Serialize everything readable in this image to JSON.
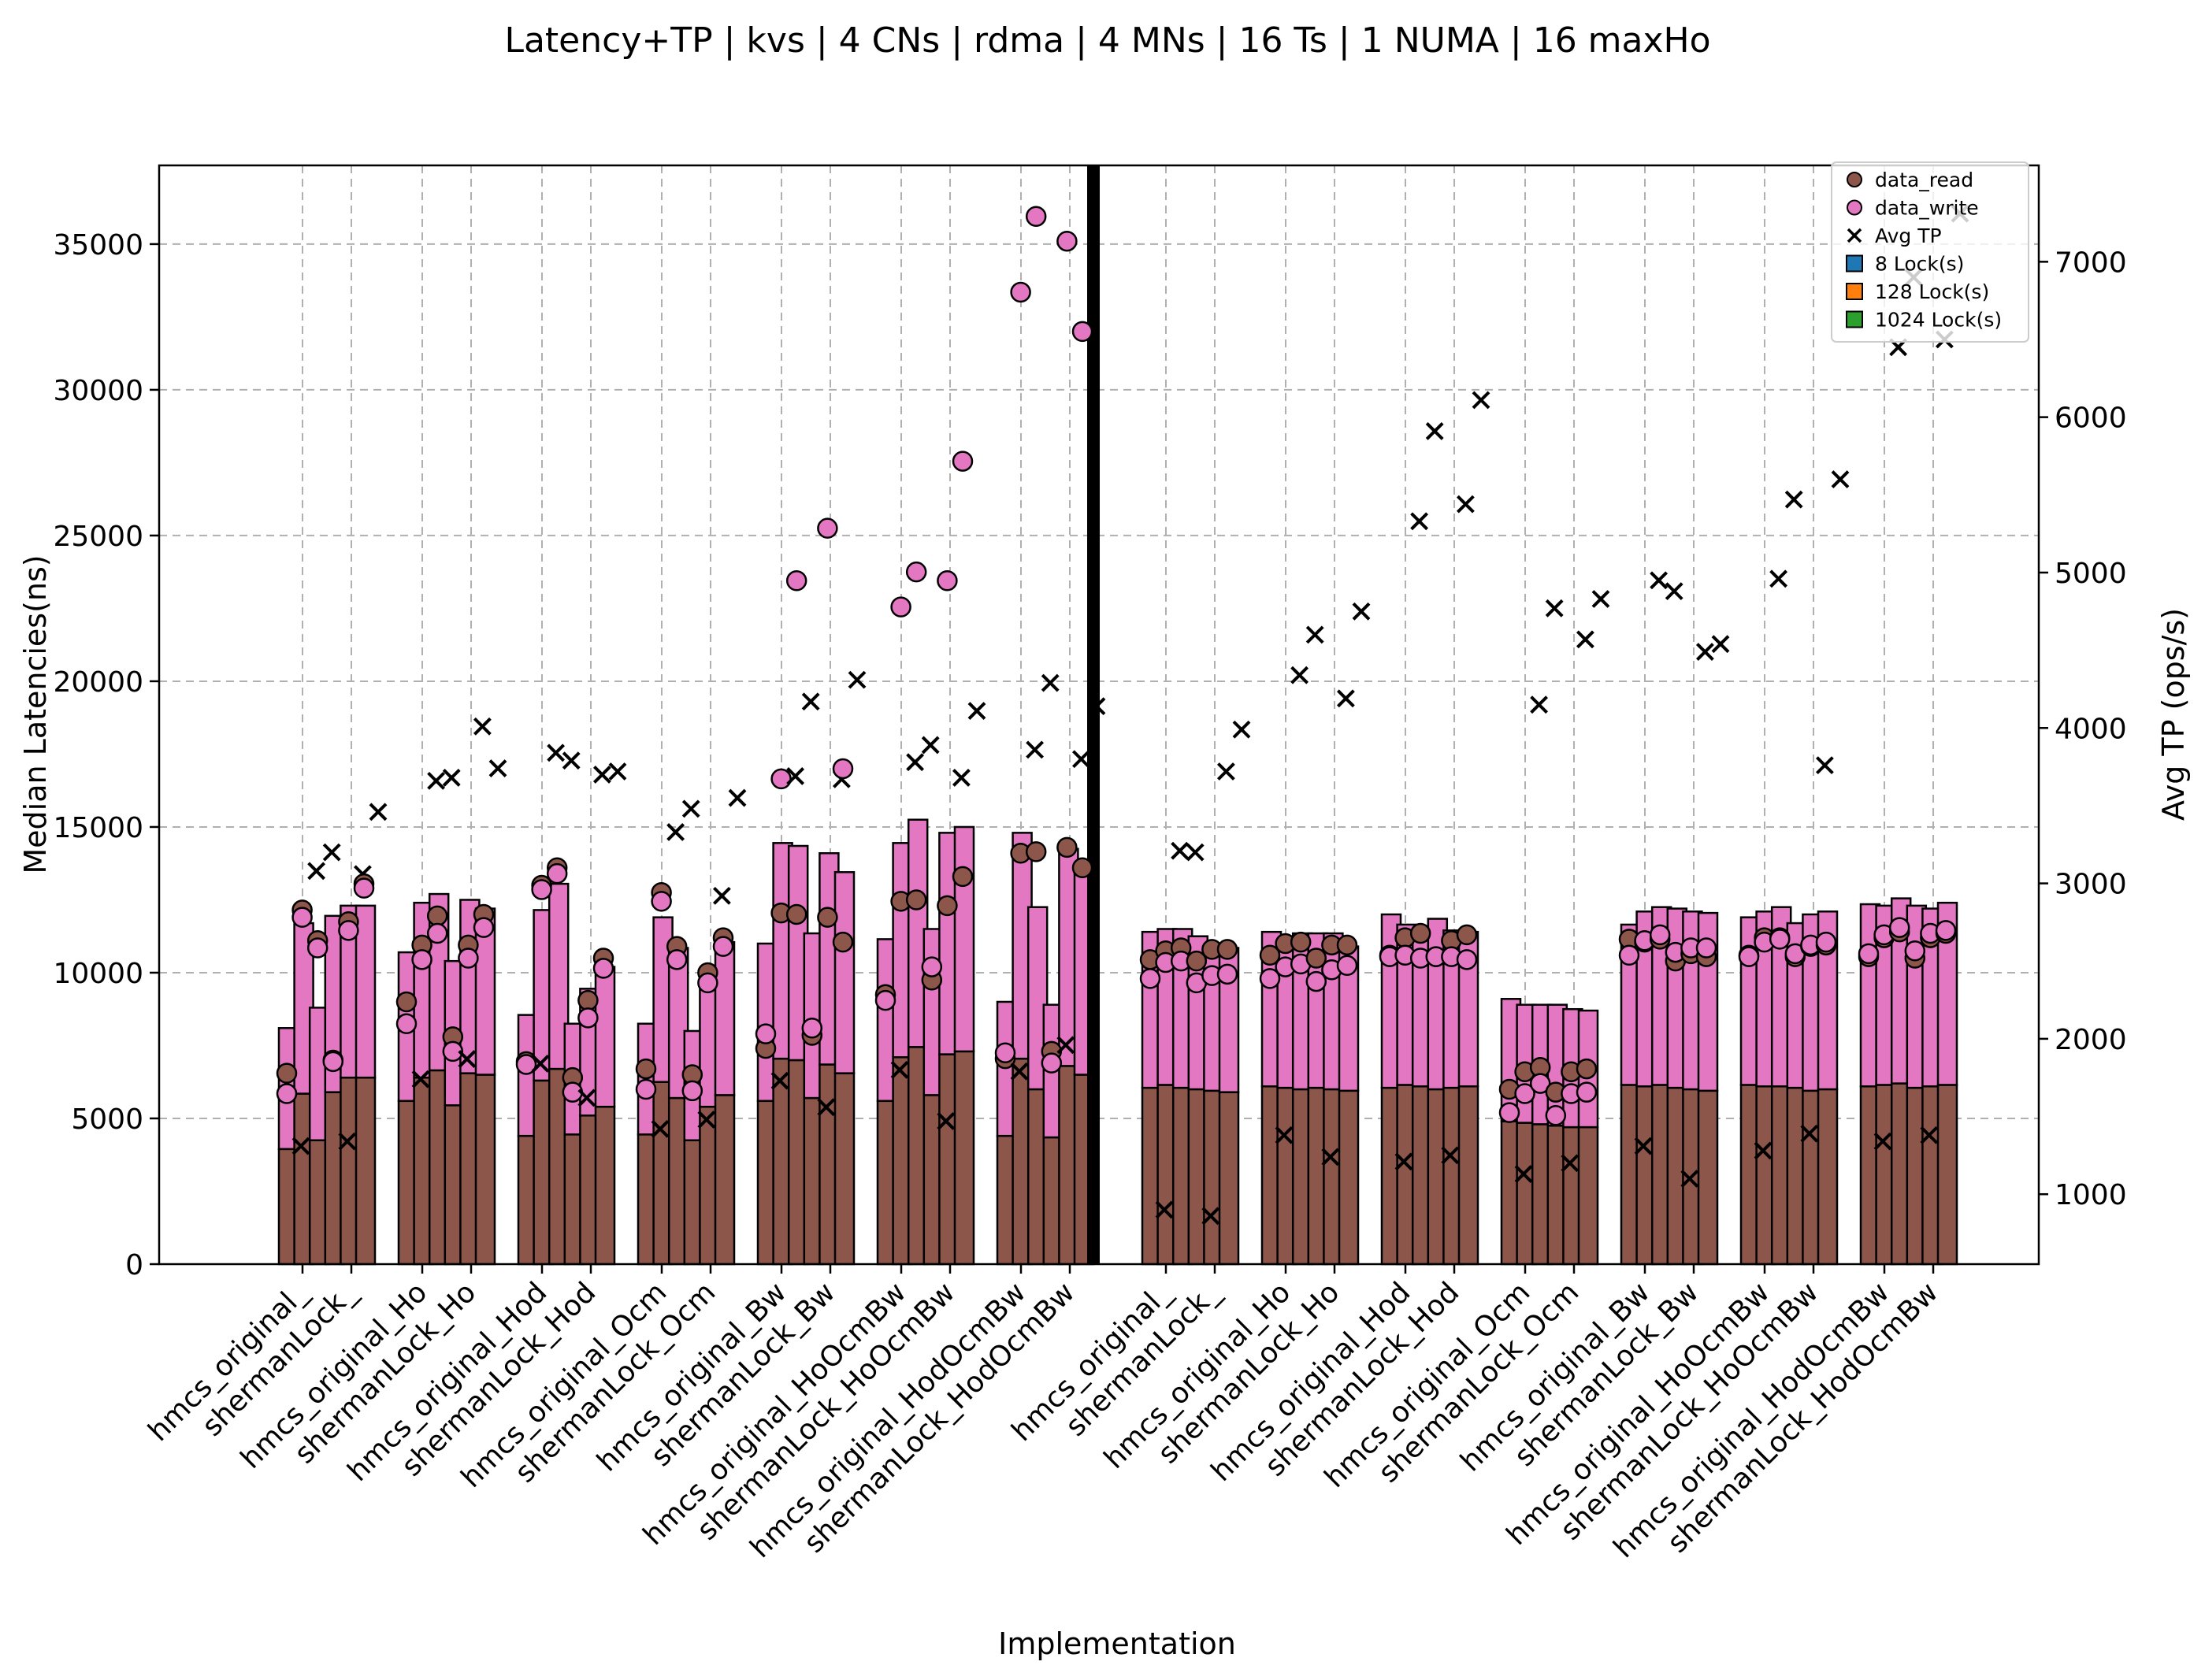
{
  "chart_data": {
    "type": "bar",
    "title": "Latency+TP | kvs | 4 CNs | rdma | 4 MNs | 16 Ts | 1 NUMA | 16 maxHo",
    "xlabel": "Implementation",
    "ylabel": "Median Latencies(ns)",
    "y2label": "Avg TP (ops/s)",
    "ylim": [
      0,
      37700
    ],
    "y2lim": [
      550,
      7620
    ],
    "yticks": [
      0,
      5000,
      10000,
      15000,
      20000,
      25000,
      30000,
      35000
    ],
    "y2ticks": [
      1000,
      2000,
      3000,
      4000,
      5000,
      6000,
      7000
    ],
    "grid": true,
    "legend_position": "top-right",
    "legend": [
      {
        "label": "data_read",
        "marker": "circle",
        "color": "#8c564b"
      },
      {
        "label": "data_write",
        "marker": "circle",
        "color": "#e377c2"
      },
      {
        "label": "Avg TP",
        "marker": "x",
        "color": "#000000"
      },
      {
        "label": "8 Lock(s)",
        "marker": "square",
        "color": "#1f77b4"
      },
      {
        "label": "128 Lock(s)",
        "marker": "square",
        "color": "#ff7f0e"
      },
      {
        "label": "1024 Lock(s)",
        "marker": "square",
        "color": "#2ca02c"
      }
    ],
    "colors": {
      "read": "#8c564b",
      "write": "#e377c2",
      "tp": "#000000",
      "divider": "#000000"
    },
    "x_labels": [
      "hmcs_original_",
      "shermanLock_",
      "hmcs_original_Ho",
      "shermanLock_Ho",
      "hmcs_original_Hod",
      "shermanLock_Hod",
      "hmcs_original_Ocm",
      "shermanLock_Ocm",
      "hmcs_original_Bw",
      "shermanLock_Bw",
      "hmcs_original_HoOcmBw",
      "shermanLock_HoOcmBw",
      "hmcs_original_HodOcmBw",
      "shermanLock_HodOcmBw",
      "hmcs_original_",
      "shermanLock_",
      "hmcs_original_Ho",
      "shermanLock_Ho",
      "hmcs_original_Hod",
      "shermanLock_Hod",
      "hmcs_original_Ocm",
      "shermanLock_Ocm",
      "hmcs_original_Bw",
      "shermanLock_Bw",
      "hmcs_original_HoOcmBw",
      "shermanLock_HoOcmBw",
      "hmcs_original_HodOcmBw",
      "shermanLock_HodOcmBw"
    ],
    "groups": [
      {
        "bars": [
          {
            "read": 3950,
            "write": 4150,
            "read_pt": 6550,
            "write_pt": 5850,
            "tp": 1310
          },
          {
            "read": 5850,
            "write": 5850,
            "read_pt": 12150,
            "write_pt": 11900,
            "tp": 3080
          },
          {
            "read": 4250,
            "write": 4550,
            "read_pt": 11100,
            "write_pt": 10850,
            "tp": 3200
          },
          {
            "read": 5900,
            "write": 6050,
            "read_pt": 7000,
            "write_pt": 6950,
            "tp": 1340
          },
          {
            "read": 6400,
            "write": 5900,
            "read_pt": 11750,
            "write_pt": 11450,
            "tp": 3060
          },
          {
            "read": 6400,
            "write": 5900,
            "read_pt": 13050,
            "write_pt": 12900,
            "tp": 3460
          }
        ]
      },
      {
        "bars": [
          {
            "read": 5600,
            "write": 5100,
            "read_pt": 9000,
            "write_pt": 8250,
            "tp": 1740
          },
          {
            "read": 6400,
            "write": 6000,
            "read_pt": 10950,
            "write_pt": 10450,
            "tp": 3660
          },
          {
            "read": 6650,
            "write": 6050,
            "read_pt": 11950,
            "write_pt": 11350,
            "tp": 3680
          },
          {
            "read": 5450,
            "write": 4950,
            "read_pt": 7800,
            "write_pt": 7300,
            "tp": 1870
          },
          {
            "read": 6550,
            "write": 5950,
            "read_pt": 10950,
            "write_pt": 10500,
            "tp": 4010
          },
          {
            "read": 6500,
            "write": 5700,
            "read_pt": 12000,
            "write_pt": 11550,
            "tp": 3740
          }
        ]
      },
      {
        "bars": [
          {
            "read": 4400,
            "write": 4150,
            "read_pt": 6950,
            "write_pt": 6850,
            "tp": 1840
          },
          {
            "read": 6300,
            "write": 5850,
            "read_pt": 13000,
            "write_pt": 12850,
            "tp": 3840
          },
          {
            "read": 6700,
            "write": 6350,
            "read_pt": 13600,
            "write_pt": 13400,
            "tp": 3790
          },
          {
            "read": 4450,
            "write": 3800,
            "read_pt": 6400,
            "write_pt": 5900,
            "tp": 1620
          },
          {
            "read": 5100,
            "write": 4350,
            "read_pt": 9050,
            "write_pt": 8450,
            "tp": 3700
          },
          {
            "read": 5400,
            "write": 4800,
            "read_pt": 10500,
            "write_pt": 10150,
            "tp": 3720
          }
        ]
      },
      {
        "bars": [
          {
            "read": 4450,
            "write": 3800,
            "read_pt": 6700,
            "write_pt": 6000,
            "tp": 1420
          },
          {
            "read": 6250,
            "write": 5650,
            "read_pt": 12750,
            "write_pt": 12450,
            "tp": 3330
          },
          {
            "read": 5700,
            "write": 5150,
            "read_pt": 10900,
            "write_pt": 10450,
            "tp": 3480
          },
          {
            "read": 4250,
            "write": 3750,
            "read_pt": 6500,
            "write_pt": 5950,
            "tp": 1480
          },
          {
            "read": 5400,
            "write": 4650,
            "read_pt": 10000,
            "write_pt": 9650,
            "tp": 2920
          },
          {
            "read": 5800,
            "write": 5250,
            "read_pt": 11200,
            "write_pt": 10900,
            "tp": 3550
          }
        ]
      },
      {
        "bars": [
          {
            "read": 5600,
            "write": 5400,
            "read_pt": 7400,
            "write_pt": 7900,
            "tp": 1730
          },
          {
            "read": 7050,
            "write": 7400,
            "read_pt": 12050,
            "write_pt": 16650,
            "tp": 3690
          },
          {
            "read": 7000,
            "write": 7350,
            "read_pt": 12000,
            "write_pt": 23450,
            "tp": 4170
          },
          {
            "read": 5700,
            "write": 5650,
            "read_pt": 7850,
            "write_pt": 8100,
            "tp": 1560
          },
          {
            "read": 6850,
            "write": 7250,
            "read_pt": 11900,
            "write_pt": 25250,
            "tp": 3670
          },
          {
            "read": 6550,
            "write": 6900,
            "read_pt": 11050,
            "write_pt": 17000,
            "tp": 4310
          }
        ]
      },
      {
        "bars": [
          {
            "read": 5600,
            "write": 5550,
            "read_pt": 9250,
            "write_pt": 9050,
            "tp": 1800
          },
          {
            "read": 7100,
            "write": 7350,
            "read_pt": 12450,
            "write_pt": 22550,
            "tp": 3780
          },
          {
            "read": 7450,
            "write": 7800,
            "read_pt": 12500,
            "write_pt": 23750,
            "tp": 3890
          },
          {
            "read": 5800,
            "write": 5700,
            "read_pt": 9750,
            "write_pt": 10200,
            "tp": 1470
          },
          {
            "read": 7200,
            "write": 7600,
            "read_pt": 12300,
            "write_pt": 23450,
            "tp": 3680
          },
          {
            "read": 7300,
            "write": 7700,
            "read_pt": 13300,
            "write_pt": 27550,
            "tp": 4110
          }
        ]
      },
      {
        "bars": [
          {
            "read": 4400,
            "write": 4600,
            "read_pt": 7050,
            "write_pt": 7250,
            "tp": 1790
          },
          {
            "read": 7050,
            "write": 7750,
            "read_pt": 14100,
            "write_pt": 33350,
            "tp": 3860
          },
          {
            "read": 6000,
            "write": 6250,
            "read_pt": 14150,
            "write_pt": 35950,
            "tp": 4290
          },
          {
            "read": 4350,
            "write": 4550,
            "read_pt": 7300,
            "write_pt": 6900,
            "tp": 1960
          },
          {
            "read": 6800,
            "write": 7450,
            "read_pt": 14300,
            "write_pt": 35100,
            "tp": 3800
          },
          {
            "read": 6500,
            "write": 7150,
            "read_pt": 13600,
            "write_pt": 32000,
            "tp": 4140
          }
        ]
      },
      {
        "bars": [
          {
            "read": 6050,
            "write": 5350,
            "read_pt": 10450,
            "write_pt": 9800,
            "tp": 900
          },
          {
            "read": 6150,
            "write": 5350,
            "read_pt": 10750,
            "write_pt": 10350,
            "tp": 3210
          },
          {
            "read": 6050,
            "write": 5450,
            "read_pt": 10850,
            "write_pt": 10400,
            "tp": 3200
          },
          {
            "read": 6000,
            "write": 5250,
            "read_pt": 10400,
            "write_pt": 9650,
            "tp": 860
          },
          {
            "read": 5950,
            "write": 4900,
            "read_pt": 10800,
            "write_pt": 9900,
            "tp": 3720
          },
          {
            "read": 5900,
            "write": 4950,
            "read_pt": 10800,
            "write_pt": 9950,
            "tp": 3990
          }
        ]
      },
      {
        "bars": [
          {
            "read": 6100,
            "write": 5300,
            "read_pt": 10600,
            "write_pt": 9800,
            "tp": 1380
          },
          {
            "read": 6050,
            "write": 5050,
            "read_pt": 11000,
            "write_pt": 10200,
            "tp": 4340
          },
          {
            "read": 6000,
            "write": 5350,
            "read_pt": 11050,
            "write_pt": 10300,
            "tp": 4600
          },
          {
            "read": 6050,
            "write": 5300,
            "read_pt": 10500,
            "write_pt": 9700,
            "tp": 1240
          },
          {
            "read": 6000,
            "write": 5350,
            "read_pt": 10950,
            "write_pt": 10100,
            "tp": 4190
          },
          {
            "read": 5950,
            "write": 4950,
            "read_pt": 10950,
            "write_pt": 10250,
            "tp": 4750
          }
        ]
      },
      {
        "bars": [
          {
            "read": 6050,
            "write": 5950,
            "read_pt": 10600,
            "write_pt": 10550,
            "tp": 1210
          },
          {
            "read": 6150,
            "write": 5500,
            "read_pt": 11200,
            "write_pt": 10600,
            "tp": 5330
          },
          {
            "read": 6100,
            "write": 5400,
            "read_pt": 11350,
            "write_pt": 10500,
            "tp": 5910
          },
          {
            "read": 6000,
            "write": 5850,
            "read_pt": 10550,
            "write_pt": 10550,
            "tp": 1250
          },
          {
            "read": 6050,
            "write": 5400,
            "read_pt": 11100,
            "write_pt": 10550,
            "tp": 5440
          },
          {
            "read": 6100,
            "write": 5300,
            "read_pt": 11300,
            "write_pt": 10450,
            "tp": 6110
          }
        ]
      },
      {
        "bars": [
          {
            "read": 4900,
            "write": 4200,
            "read_pt": 6000,
            "write_pt": 5200,
            "tp": 1130
          },
          {
            "read": 4850,
            "write": 4050,
            "read_pt": 6600,
            "write_pt": 5850,
            "tp": 4150
          },
          {
            "read": 4800,
            "write": 4100,
            "read_pt": 6750,
            "write_pt": 6200,
            "tp": 4770
          },
          {
            "read": 4750,
            "write": 4150,
            "read_pt": 5900,
            "write_pt": 5100,
            "tp": 1200
          },
          {
            "read": 4700,
            "write": 4050,
            "read_pt": 6600,
            "write_pt": 5850,
            "tp": 4570
          },
          {
            "read": 4700,
            "write": 4000,
            "read_pt": 6700,
            "write_pt": 5900,
            "tp": 4830
          }
        ]
      },
      {
        "bars": [
          {
            "read": 6150,
            "write": 5500,
            "read_pt": 11150,
            "write_pt": 10600,
            "tp": 1310
          },
          {
            "read": 6100,
            "write": 6000,
            "read_pt": 11050,
            "write_pt": 11100,
            "tp": 4950
          },
          {
            "read": 6150,
            "write": 6100,
            "read_pt": 11150,
            "write_pt": 11300,
            "tp": 4880
          },
          {
            "read": 6050,
            "write": 6150,
            "read_pt": 10400,
            "write_pt": 10700,
            "tp": 1100
          },
          {
            "read": 6000,
            "write": 6100,
            "read_pt": 10650,
            "write_pt": 10850,
            "tp": 4490
          },
          {
            "read": 5950,
            "write": 6100,
            "read_pt": 10550,
            "write_pt": 10850,
            "tp": 4540
          }
        ]
      },
      {
        "bars": [
          {
            "read": 6150,
            "write": 5750,
            "read_pt": 10600,
            "write_pt": 10550,
            "tp": 1280
          },
          {
            "read": 6100,
            "write": 6000,
            "read_pt": 11200,
            "write_pt": 11050,
            "tp": 4960
          },
          {
            "read": 6100,
            "write": 6150,
            "read_pt": 11200,
            "write_pt": 11150,
            "tp": 5470
          },
          {
            "read": 6050,
            "write": 5650,
            "read_pt": 10550,
            "write_pt": 10650,
            "tp": 1390
          },
          {
            "read": 5950,
            "write": 6050,
            "read_pt": 10900,
            "write_pt": 10950,
            "tp": 3760
          },
          {
            "read": 6000,
            "write": 6100,
            "read_pt": 10950,
            "write_pt": 11050,
            "tp": 5600
          }
        ]
      },
      {
        "bars": [
          {
            "read": 6100,
            "write": 6250,
            "read_pt": 10550,
            "write_pt": 10650,
            "tp": 1340
          },
          {
            "read": 6150,
            "write": 6150,
            "read_pt": 11200,
            "write_pt": 11300,
            "tp": 6450
          },
          {
            "read": 6200,
            "write": 6350,
            "read_pt": 11400,
            "write_pt": 11550,
            "tp": 6900
          },
          {
            "read": 6050,
            "write": 6250,
            "read_pt": 10500,
            "write_pt": 10750,
            "tp": 1380
          },
          {
            "read": 6100,
            "write": 6100,
            "read_pt": 11200,
            "write_pt": 11350,
            "tp": 6500
          },
          {
            "read": 6150,
            "write": 6250,
            "read_pt": 11350,
            "write_pt": 11450,
            "tp": 7310
          }
        ]
      }
    ]
  }
}
